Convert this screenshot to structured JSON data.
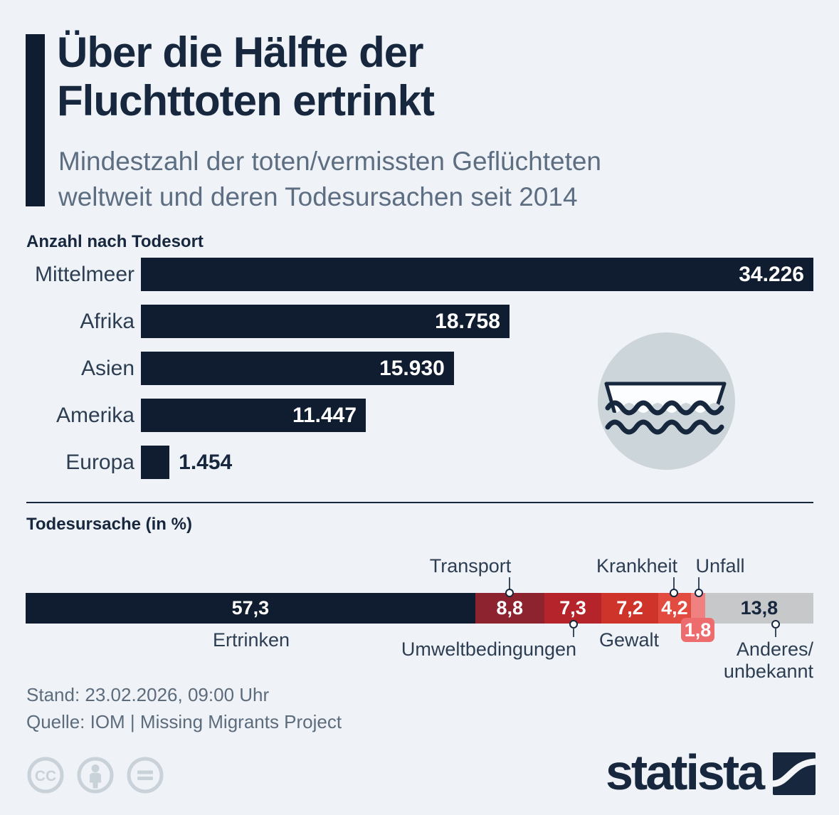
{
  "header": {
    "title": "Über die Hälfte der Fluchttoten ertrinkt",
    "subtitle": "Mindestzahl der toten/vermissten Geflüchteten weltweit und deren Todesursachen seit 2014"
  },
  "sections": {
    "location_heading": "Anzahl nach Todesort",
    "cause_heading": "Todesursache (in %)"
  },
  "chart_data": [
    {
      "type": "bar",
      "orientation": "horizontal",
      "title": "Anzahl nach Todesort",
      "categories": [
        "Mittelmeer",
        "Afrika",
        "Asien",
        "Amerika",
        "Europa"
      ],
      "values": [
        34226,
        18758,
        15930,
        11447,
        1454
      ],
      "value_labels": [
        "34.226",
        "18.758",
        "15.930",
        "11.447",
        "1.454"
      ],
      "value_label_inside": [
        true,
        true,
        true,
        true,
        false
      ],
      "xlim": [
        0,
        34226
      ],
      "bar_color": "#101d30",
      "grid": false
    },
    {
      "type": "bar",
      "subtype": "stacked-percentage",
      "title": "Todesursache (in %)",
      "xlim": [
        0,
        100
      ],
      "segments": [
        {
          "name": "Ertrinken",
          "value": 57.3,
          "label": "57,3",
          "color": "#101d30",
          "label_in_bar": true,
          "label_color": "#ffffff"
        },
        {
          "name": "Transport",
          "value": 8.8,
          "label": "8,8",
          "color": "#8e2330",
          "label_in_bar": true,
          "label_color": "#ffffff"
        },
        {
          "name": "Umweltbedingungen",
          "value": 7.3,
          "label": "7,3",
          "color": "#b5242b",
          "label_in_bar": true,
          "label_color": "#ffffff"
        },
        {
          "name": "Gewalt",
          "value": 7.2,
          "label": "7,2",
          "color": "#cf342b",
          "label_in_bar": true,
          "label_color": "#ffffff"
        },
        {
          "name": "Krankheit",
          "value": 4.2,
          "label": "4,2",
          "color": "#e14b40",
          "label_in_bar": true,
          "label_color": "#ffffff"
        },
        {
          "name": "Unfall",
          "value": 1.8,
          "label": "1,8",
          "color": "#ef8280",
          "label_in_bar": false,
          "label_color": "#ffffff"
        },
        {
          "name": "Anderes/unbekannt",
          "value": 13.8,
          "label": "13,8",
          "color": "#c7c8ca",
          "label_in_bar": true,
          "label_color": "#16273e"
        }
      ]
    }
  ],
  "callouts": {
    "anderes_line1": "Anderes/",
    "anderes_line2": "unbekannt"
  },
  "icons": {
    "boat": "boat-in-water-icon",
    "licenses": [
      "cc-icon",
      "attribution-person-icon",
      "no-derivatives-equals-icon"
    ]
  },
  "footer": {
    "stand": "Stand: 23.02.2026, 09:00 Uhr",
    "quelle": "Quelle: IOM | Missing Migrants Project",
    "brand": "statista"
  },
  "colors": {
    "background": "#eff2f7",
    "navy": "#101d30",
    "title": "#16273e",
    "text_gray": "#5c6c7d",
    "badge": "#ed6d6e",
    "icon_circle": "#ccd5da",
    "license_gray": "#c9d1d9"
  }
}
